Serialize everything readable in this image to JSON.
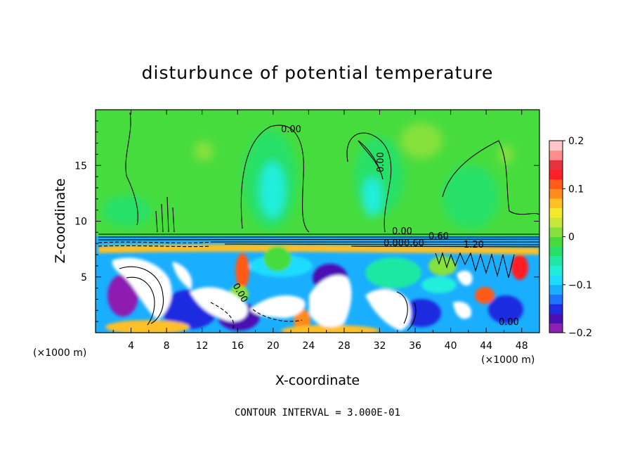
{
  "chart_data": {
    "type": "heatmap",
    "title": "disturbunce of potential temperature",
    "xlabel": "X-coordinate",
    "ylabel": "Z-coordinate",
    "x_unit": "(×1000 m)",
    "z_unit": "(×1000 m)",
    "xlim": [
      0,
      50
    ],
    "ylim": [
      0,
      20
    ],
    "x_ticks": [
      4,
      8,
      12,
      16,
      20,
      24,
      28,
      32,
      36,
      40,
      44,
      48
    ],
    "y_ticks": [
      5,
      10,
      15
    ],
    "colorbar": {
      "range": [
        -0.2,
        0.2
      ],
      "ticks": [
        "0.2",
        "0.1",
        "0",
        "−0.1",
        "−0.2"
      ],
      "colors": [
        "#8e1fb3",
        "#4b10b4",
        "#1f2ce0",
        "#1e72ff",
        "#1aaeff",
        "#1fdcff",
        "#20eedc",
        "#1fe8a4",
        "#27e068",
        "#47dc3e",
        "#86e13e",
        "#c6e83c",
        "#f3ea2b",
        "#ffbf25",
        "#ff8a1d",
        "#ff5a18",
        "#ff1f24",
        "#e8323c",
        "#ff8c8c",
        "#ffc7c7"
      ]
    },
    "contour_interval": "CONTOUR INTERVAL = 3.000E-01",
    "contour_labels": [
      "0.00",
      "0.00",
      "0.00",
      "0.60",
      "0.60",
      "1.20",
      "0.00",
      "0.00",
      "0.00"
    ]
  }
}
